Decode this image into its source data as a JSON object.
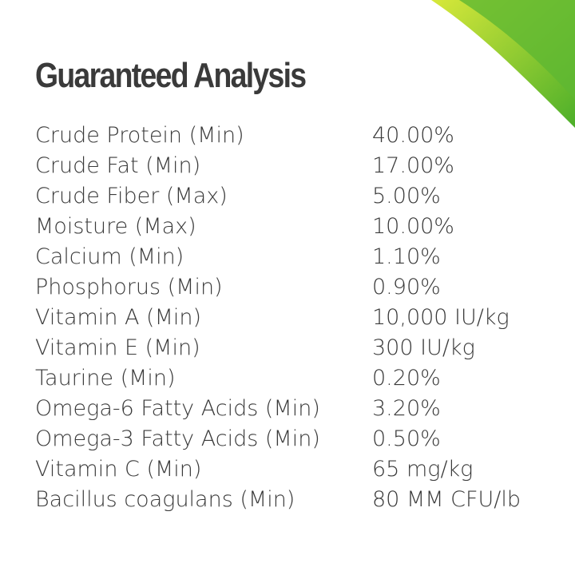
{
  "header": {
    "title": "Guaranteed Analysis"
  },
  "table": {
    "rows": [
      [
        "Crude Protein (Min)",
        "40.00%"
      ],
      [
        "Crude Fat (Min)",
        "17.00%"
      ],
      [
        "Crude Fiber (Max)",
        "5.00%"
      ],
      [
        "Moisture (Max)",
        "10.00%"
      ],
      [
        "Calcium (Min)",
        "1.10%"
      ],
      [
        "Phosphorus (Min)",
        "0.90%"
      ],
      [
        "Vitamin A (Min)",
        "10,000 IU/kg"
      ],
      [
        "Vitamin E (Min)",
        "300 IU/kg"
      ],
      [
        "Taurine (Min)",
        "0.20%"
      ],
      [
        "Omega-6 Fatty Acids (Min)",
        "3.20%"
      ],
      [
        "Omega-3 Fatty Acids (Min)",
        "0.50%"
      ],
      [
        "Vitamin C (Min)",
        "65 mg/kg"
      ],
      [
        "Bacillus coagulans (Min)",
        "80 MM CFU/lb"
      ]
    ]
  }
}
